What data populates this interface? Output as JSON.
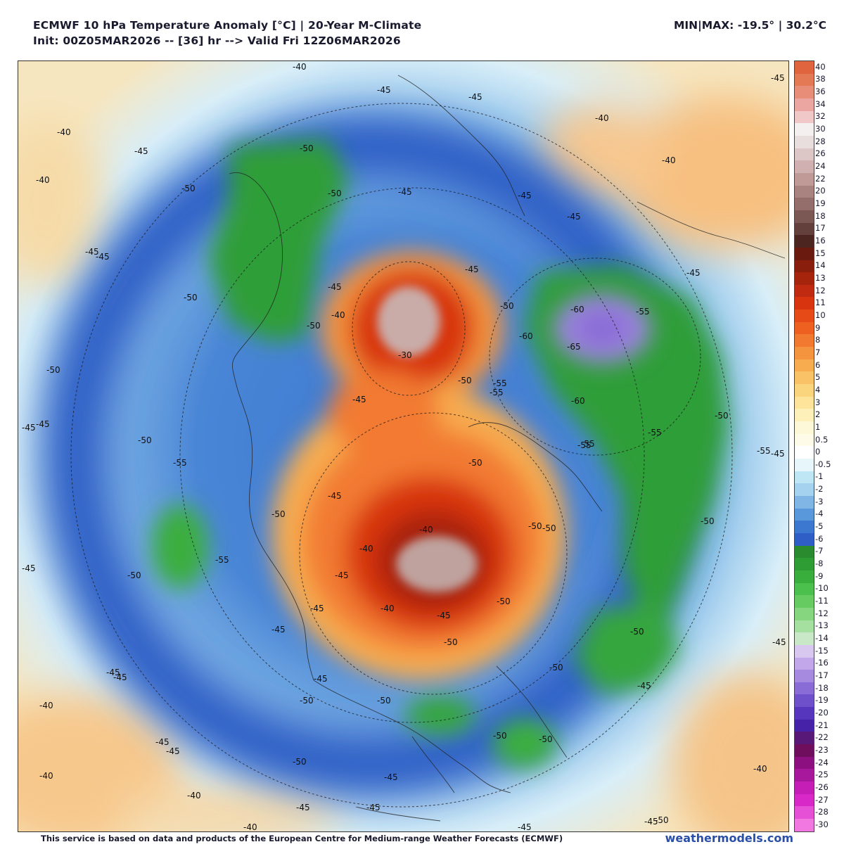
{
  "header": {
    "title": "ECMWF 10 hPa Temperature Anomaly [°C] | 20-Year M-Climate",
    "init_line": "Init: 00Z05MAR2026 -- [36] hr --> Valid Fri 12Z06MAR2026",
    "minmax": "MIN|MAX: -19.5° | 30.2°C"
  },
  "colorbar": {
    "levels": [
      "40",
      "38",
      "36",
      "34",
      "32",
      "30",
      "28",
      "26",
      "24",
      "22",
      "20",
      "19",
      "18",
      "17",
      "16",
      "15",
      "14",
      "13",
      "12",
      "11",
      "10",
      "9",
      "8",
      "7",
      "6",
      "5",
      "4",
      "3",
      "2",
      "1",
      "0.5",
      "0",
      "-0.5",
      "-1",
      "-2",
      "-3",
      "-4",
      "-5",
      "-6",
      "-7",
      "-8",
      "-9",
      "-10",
      "-11",
      "-12",
      "-13",
      "-14",
      "-15",
      "-16",
      "-17",
      "-18",
      "-19",
      "-20",
      "-21",
      "-22",
      "-23",
      "-24",
      "-25",
      "-26",
      "-27",
      "-28",
      "-30"
    ],
    "colors": [
      "#e0643e",
      "#e37a55",
      "#e88e78",
      "#eca6a2",
      "#f0c8c8",
      "#f4f0f0",
      "#e9dede",
      "#dcc6c6",
      "#d0b0b0",
      "#bf9a96",
      "#a88380",
      "#946e6a",
      "#7c5854",
      "#64403c",
      "#4c2420",
      "#6a1a0e",
      "#8a1e0c",
      "#a6240c",
      "#c02a10",
      "#d83410",
      "#e64a16",
      "#ee6020",
      "#f27a30",
      "#f5943e",
      "#f7ac50",
      "#f9c266",
      "#fbd47e",
      "#fde49a",
      "#fdf0b8",
      "#fdf8d8",
      "#fefbe8",
      "#ffffff",
      "#e6f6fb",
      "#bfe6f5",
      "#a4d2ef",
      "#7fb6e6",
      "#5a98dc",
      "#3c78d0",
      "#2e5ec6",
      "#2a8a2e",
      "#2e9e34",
      "#3aae3c",
      "#4cc04c",
      "#66cc62",
      "#86d680",
      "#a6e0a0",
      "#c8e8c8",
      "#d8c8f0",
      "#c2a8ea",
      "#a68ae0",
      "#8a6cd6",
      "#6e50ca",
      "#5636bc",
      "#4622a8",
      "#581878",
      "#700e5e",
      "#8c1080",
      "#a8189c",
      "#c41eb6",
      "#d828c8",
      "#e650d6",
      "#f078e0"
    ]
  },
  "map": {
    "contour_labels": [
      "-40",
      "-45",
      "-45",
      "-40",
      "-45",
      "-50",
      "-40",
      "-45",
      "-40",
      "-45",
      "-50",
      "-50",
      "-50",
      "-45",
      "-50",
      "-45",
      "-50",
      "-45",
      "-45",
      "-45",
      "-50",
      "-45",
      "-40",
      "-45",
      "-40",
      "-40",
      "-40",
      "-45",
      "-30",
      "-40",
      "-45",
      "-50",
      "-55",
      "-60",
      "-55",
      "-60",
      "-65",
      "-60",
      "-50",
      "-55",
      "-55",
      "-45",
      "-50",
      "-50",
      "-50",
      "-55",
      "-45",
      "-50",
      "-45",
      "-45",
      "-45",
      "-55",
      "-45",
      "-55",
      "-55",
      "-50",
      "-55",
      "-50",
      "-50",
      "-50",
      "-50",
      "-45",
      "-45",
      "-40",
      "-45",
      "-40",
      "-40",
      "-45",
      "-45",
      "-45",
      "-45",
      "-50",
      "-50",
      "-50",
      "-50",
      "-45",
      "-45",
      "-40",
      "-40",
      "-45",
      "-50",
      "-50",
      "-50",
      "-50",
      "-45",
      "-45",
      "-45",
      "-45"
    ]
  },
  "footer": {
    "credit": "This service is based on data and products of the European Centre for Medium-range Weather Forecasts (ECMWF)",
    "brand": "weathermodels.com"
  }
}
